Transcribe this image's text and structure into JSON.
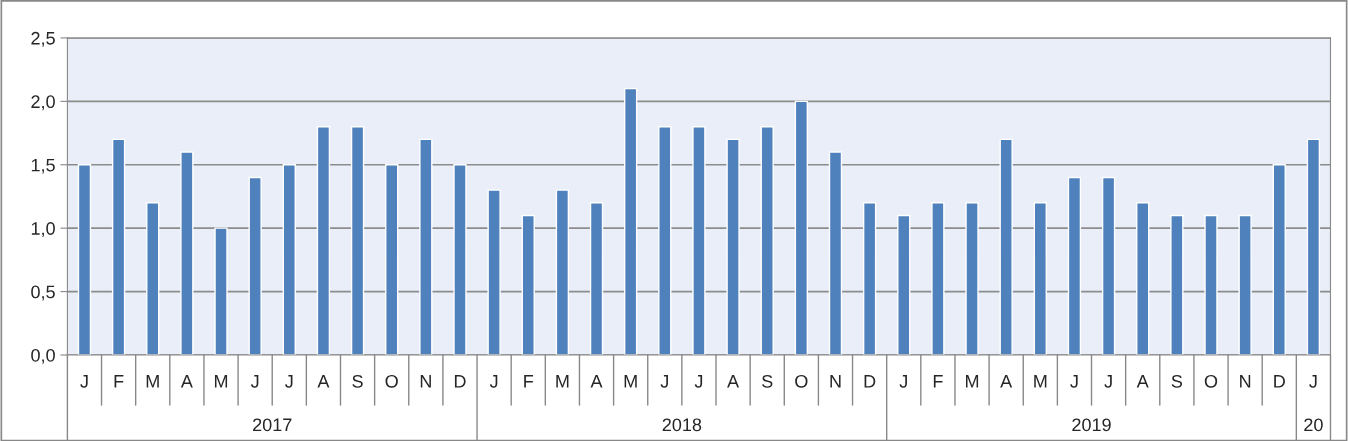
{
  "chart_data": {
    "type": "bar",
    "categories": [
      "J",
      "F",
      "M",
      "A",
      "M",
      "J",
      "J",
      "A",
      "S",
      "O",
      "N",
      "D",
      "J",
      "F",
      "M",
      "A",
      "M",
      "J",
      "J",
      "A",
      "S",
      "O",
      "N",
      "D",
      "J",
      "F",
      "M",
      "A",
      "M",
      "J",
      "J",
      "A",
      "S",
      "O",
      "N",
      "D",
      "J"
    ],
    "values": [
      1.5,
      1.7,
      1.2,
      1.6,
      1.0,
      1.4,
      1.5,
      1.8,
      1.8,
      1.5,
      1.7,
      1.5,
      1.3,
      1.1,
      1.3,
      1.2,
      2.1,
      1.8,
      1.8,
      1.7,
      1.8,
      2.0,
      1.6,
      1.2,
      1.1,
      1.2,
      1.2,
      1.7,
      1.2,
      1.4,
      1.4,
      1.2,
      1.1,
      1.1,
      1.1,
      1.5,
      1.7
    ],
    "color": "#4f81bd",
    "ylim": [
      0,
      2.5
    ],
    "yticks": [
      {
        "value": 0,
        "label": "0,0"
      },
      {
        "value": 0.5,
        "label": "0,5"
      },
      {
        "value": 1,
        "label": "1,0"
      },
      {
        "value": 1.5,
        "label": "1,5"
      },
      {
        "value": 2,
        "label": "2,0"
      },
      {
        "value": 2.5,
        "label": "2,5"
      }
    ],
    "grid": "y",
    "legend": false,
    "annotations": [
      "2017",
      "2018",
      "2019",
      "20"
    ]
  }
}
